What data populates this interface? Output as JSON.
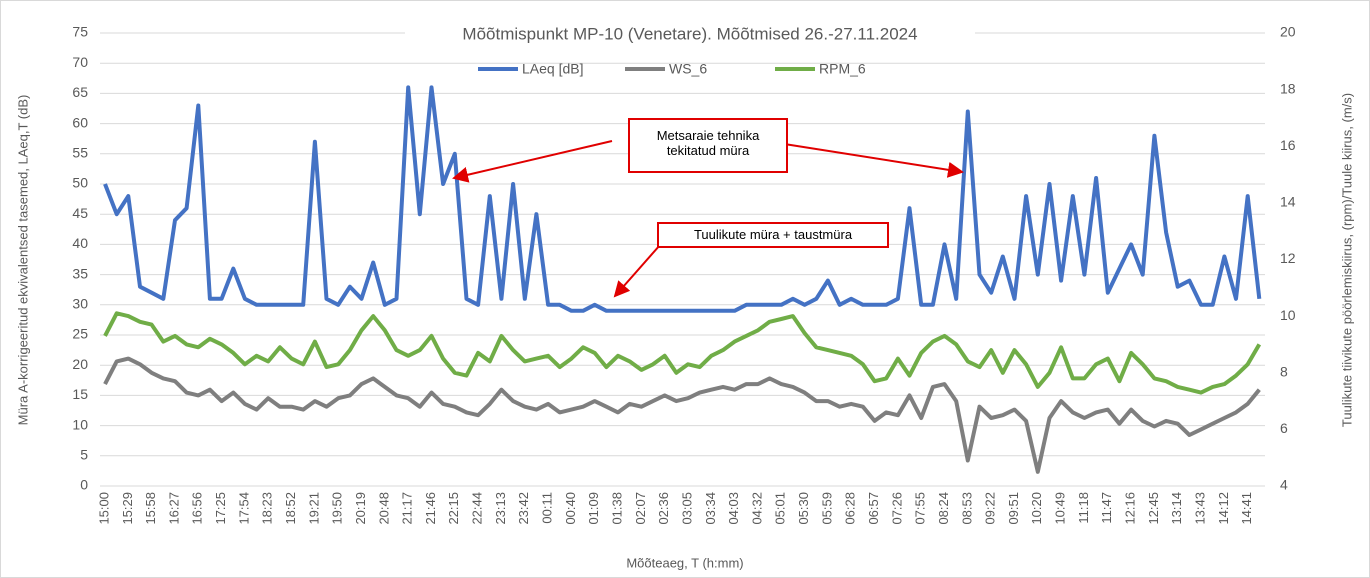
{
  "chart_data": {
    "type": "line",
    "title": "Mõõtmispunkt MP-10 (Venetare). Mõõtmised 26.-27.11.2024",
    "x_label": "Mõõteaeg, T (h:mm)",
    "y_label": "Müra A-korrigeeritud ekvivalentsed tasemed, LAeq,T (dB)",
    "y2_label": "Tuulikute tiivikute pöörlemiskiirus, (rpm)/Tuule kiirus, (m/s)",
    "annotations": [
      "Metsaraie tehnika tekitatud müra",
      "Tuulikute müra + taustmüra"
    ],
    "categories": [
      "15:00",
      null,
      "15:29",
      null,
      "15:58",
      null,
      "16:27",
      null,
      "16:56",
      null,
      "17:25",
      null,
      "17:54",
      null,
      "18:23",
      null,
      "18:52",
      null,
      "19:21",
      null,
      "19:50",
      null,
      "20:19",
      null,
      "20:48",
      null,
      "21:17",
      null,
      "21:46",
      null,
      "22:15",
      null,
      "22:44",
      null,
      "23:13",
      null,
      "23:42",
      null,
      "00:11",
      null,
      "00:40",
      null,
      "01:09",
      null,
      "01:38",
      null,
      "02:07",
      null,
      "02:36",
      null,
      "03:05",
      null,
      "03:34",
      null,
      "04:03",
      null,
      "04:32",
      null,
      "05:01",
      null,
      "05:30",
      null,
      "05:59",
      null,
      "06:28",
      null,
      "06:57",
      null,
      "07:26",
      null,
      "07:55",
      null,
      "08:24",
      null,
      "08:53",
      null,
      "09:22",
      null,
      "09:51",
      null,
      "10:20",
      null,
      "10:49",
      null,
      "11:18",
      null,
      "11:47",
      null,
      "12:16",
      null,
      "12:45",
      null,
      "13:14",
      null,
      "13:43",
      null,
      "14:12",
      null,
      "14:41",
      null
    ],
    "series": [
      {
        "name": "LAeq [dB]",
        "color": "#4472c4",
        "values": [
          50,
          45,
          48,
          33,
          32,
          31,
          44,
          46,
          63,
          31,
          31,
          36,
          31,
          30,
          30,
          30,
          30,
          30,
          57,
          31,
          30,
          33,
          31,
          37,
          30,
          31,
          66,
          45,
          66,
          50,
          55,
          31,
          30,
          48,
          31,
          50,
          31,
          45,
          30,
          30,
          29,
          29,
          30,
          29,
          29,
          29,
          29,
          29,
          29,
          29,
          29,
          29,
          29,
          29,
          29,
          30,
          30,
          30,
          30,
          31,
          30,
          31,
          34,
          30,
          31,
          30,
          30,
          30,
          31,
          46,
          30,
          30,
          40,
          31,
          62,
          35,
          32,
          38,
          31,
          48,
          35,
          50,
          34,
          48,
          35,
          51,
          32,
          36,
          40,
          35,
          58,
          42,
          33,
          34,
          30,
          30,
          38,
          31,
          48,
          31
        ]
      },
      {
        "name": "WS_6",
        "color": "#7f7f7f",
        "axis": "y2",
        "values": [
          7.6,
          8.4,
          8.5,
          8.3,
          8.0,
          7.8,
          7.7,
          7.3,
          7.2,
          7.4,
          7.0,
          7.3,
          6.9,
          6.7,
          7.1,
          6.8,
          6.8,
          6.7,
          7.0,
          6.8,
          7.1,
          7.2,
          7.6,
          7.8,
          7.5,
          7.2,
          7.1,
          6.8,
          7.3,
          6.9,
          6.8,
          6.6,
          6.5,
          6.9,
          7.4,
          7.0,
          6.8,
          6.7,
          6.9,
          6.6,
          6.7,
          6.8,
          7.0,
          6.8,
          6.6,
          6.9,
          6.8,
          7.0,
          7.2,
          7.0,
          7.1,
          7.3,
          7.4,
          7.5,
          7.4,
          7.6,
          7.6,
          7.8,
          7.6,
          7.5,
          7.3,
          7.0,
          7.0,
          6.8,
          6.9,
          6.8,
          6.3,
          6.6,
          6.5,
          7.2,
          6.4,
          7.5,
          7.6,
          7.0,
          4.9,
          6.8,
          6.4,
          6.5,
          6.7,
          6.3,
          4.5,
          6.4,
          7.0,
          6.6,
          6.4,
          6.6,
          6.7,
          6.2,
          6.7,
          6.3,
          6.1,
          6.3,
          6.2,
          5.8,
          6.0,
          6.2,
          6.4,
          6.6,
          6.9,
          7.4
        ]
      },
      {
        "name": "RPM_6",
        "color": "#70ad47",
        "axis": "y2",
        "values": [
          9.3,
          10.1,
          10.0,
          9.8,
          9.7,
          9.1,
          9.3,
          9.0,
          8.9,
          9.2,
          9.0,
          8.7,
          8.3,
          8.6,
          8.4,
          8.9,
          8.5,
          8.3,
          9.1,
          8.2,
          8.3,
          8.8,
          9.5,
          10.0,
          9.5,
          8.8,
          8.6,
          8.8,
          9.3,
          8.5,
          8.0,
          7.9,
          8.7,
          8.4,
          9.3,
          8.8,
          8.4,
          8.5,
          8.6,
          8.2,
          8.5,
          8.9,
          8.7,
          8.2,
          8.6,
          8.4,
          8.1,
          8.3,
          8.6,
          8.0,
          8.3,
          8.2,
          8.6,
          8.8,
          9.1,
          9.3,
          9.5,
          9.8,
          9.9,
          10.0,
          9.4,
          8.9,
          8.8,
          8.7,
          8.6,
          8.3,
          7.7,
          7.8,
          8.5,
          7.9,
          8.7,
          9.1,
          9.3,
          9.0,
          8.4,
          8.2,
          8.8,
          8.0,
          8.8,
          8.3,
          7.5,
          8.0,
          8.9,
          7.8,
          7.8,
          8.3,
          8.5,
          7.7,
          8.7,
          8.3,
          7.8,
          7.7,
          7.5,
          7.4,
          7.3,
          7.5,
          7.6,
          7.9,
          8.3,
          9.0
        ]
      }
    ],
    "ylim": [
      0,
      75
    ],
    "yticks": [
      0,
      5,
      10,
      15,
      20,
      25,
      30,
      35,
      40,
      45,
      50,
      55,
      60,
      65,
      70,
      75
    ],
    "y2lim": [
      4,
      20
    ],
    "y2ticks": [
      4,
      6,
      8,
      10,
      12,
      14,
      16,
      18,
      20
    ],
    "grid": true,
    "legend": "top"
  }
}
